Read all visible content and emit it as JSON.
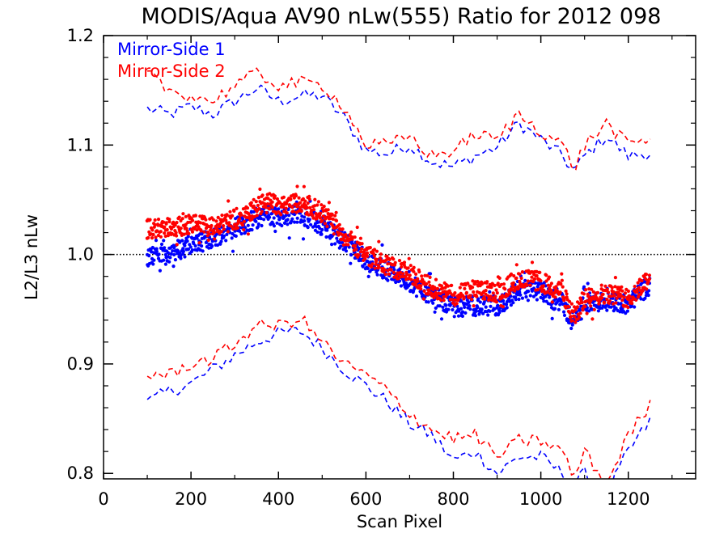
{
  "chart_data": {
    "type": "scatter",
    "title": "MODIS/Aqua AV90 nLw(555) Ratio for 2012 098",
    "xlabel": "Scan Pixel",
    "ylabel": "L2/L3 nLw",
    "xlim": [
      0,
      1354
    ],
    "ylim": [
      0.795,
      1.2
    ],
    "x_ticks": [
      0,
      200,
      400,
      600,
      800,
      1000,
      1200
    ],
    "y_ticks": [
      0.8,
      0.9,
      1.0,
      1.1,
      1.2
    ],
    "x_tick_labels": [
      "0",
      "200",
      "400",
      "600",
      "800",
      "1000",
      "1200"
    ],
    "y_tick_labels": [
      "0.8",
      "0.9",
      "1.0",
      "1.1",
      "1.2"
    ],
    "reference_line": {
      "y": 1.0,
      "style": "dotted",
      "color": "#000000"
    },
    "legend_position": "top-left",
    "series": [
      {
        "name": "Mirror-Side 1",
        "color": "#0000ff",
        "points_x": [
          100,
          150,
          200,
          250,
          300,
          350,
          375,
          400,
          450,
          500,
          550,
          600,
          650,
          700,
          750,
          800,
          850,
          900,
          950,
          1000,
          1050,
          1075,
          1100,
          1150,
          1200,
          1250
        ],
        "points_y": [
          0.998,
          1.002,
          1.008,
          1.015,
          1.025,
          1.032,
          1.037,
          1.033,
          1.038,
          1.025,
          1.012,
          0.995,
          0.985,
          0.975,
          0.962,
          0.952,
          0.953,
          0.952,
          0.968,
          0.965,
          0.955,
          0.938,
          0.955,
          0.958,
          0.955,
          0.972
        ],
        "upper_x": [
          100,
          150,
          200,
          250,
          300,
          350,
          400,
          450,
          500,
          550,
          600,
          650,
          700,
          750,
          800,
          850,
          900,
          950,
          1000,
          1050,
          1075,
          1100,
          1150,
          1200,
          1250
        ],
        "upper_y": [
          1.133,
          1.128,
          1.135,
          1.128,
          1.14,
          1.152,
          1.14,
          1.145,
          1.145,
          1.125,
          1.095,
          1.092,
          1.1,
          1.085,
          1.08,
          1.09,
          1.098,
          1.12,
          1.105,
          1.09,
          1.075,
          1.09,
          1.108,
          1.09,
          1.093
        ],
        "lower_x": [
          100,
          150,
          200,
          250,
          300,
          350,
          400,
          450,
          500,
          550,
          600,
          650,
          700,
          750,
          800,
          850,
          900,
          950,
          1000,
          1050,
          1075,
          1100,
          1150,
          1200,
          1250
        ],
        "lower_y": [
          0.865,
          0.875,
          0.882,
          0.895,
          0.908,
          0.92,
          0.928,
          0.93,
          0.915,
          0.895,
          0.88,
          0.865,
          0.845,
          0.835,
          0.812,
          0.82,
          0.8,
          0.815,
          0.815,
          0.8,
          0.79,
          0.8,
          0.78,
          0.82,
          0.848
        ]
      },
      {
        "name": "Mirror-Side 2",
        "color": "#ff0000",
        "points_x": [
          100,
          150,
          200,
          250,
          300,
          350,
          375,
          400,
          450,
          500,
          550,
          600,
          650,
          700,
          750,
          800,
          850,
          900,
          950,
          1000,
          1050,
          1075,
          1100,
          1150,
          1200,
          1250
        ],
        "points_y": [
          1.023,
          1.025,
          1.028,
          1.025,
          1.032,
          1.043,
          1.05,
          1.045,
          1.048,
          1.038,
          1.018,
          1.0,
          0.99,
          0.982,
          0.97,
          0.962,
          0.968,
          0.965,
          0.978,
          0.975,
          0.965,
          0.942,
          0.96,
          0.965,
          0.96,
          0.98
        ],
        "upper_x": [
          100,
          150,
          200,
          250,
          300,
          350,
          400,
          450,
          500,
          550,
          600,
          650,
          700,
          750,
          800,
          850,
          900,
          950,
          1000,
          1050,
          1075,
          1100,
          1150,
          1200,
          1250
        ],
        "upper_y": [
          1.165,
          1.15,
          1.145,
          1.14,
          1.155,
          1.165,
          1.155,
          1.157,
          1.155,
          1.135,
          1.1,
          1.1,
          1.108,
          1.09,
          1.095,
          1.11,
          1.105,
          1.128,
          1.113,
          1.1,
          1.078,
          1.1,
          1.12,
          1.1,
          1.105
        ],
        "lower_x": [
          100,
          150,
          200,
          250,
          300,
          350,
          400,
          450,
          500,
          550,
          600,
          650,
          700,
          750,
          800,
          850,
          900,
          950,
          1000,
          1050,
          1075,
          1100,
          1150,
          1200,
          1250
        ],
        "lower_y": [
          0.89,
          0.89,
          0.9,
          0.905,
          0.918,
          0.935,
          0.935,
          0.942,
          0.92,
          0.9,
          0.89,
          0.875,
          0.855,
          0.84,
          0.832,
          0.835,
          0.815,
          0.83,
          0.83,
          0.82,
          0.795,
          0.82,
          0.79,
          0.835,
          0.862
        ]
      }
    ]
  }
}
